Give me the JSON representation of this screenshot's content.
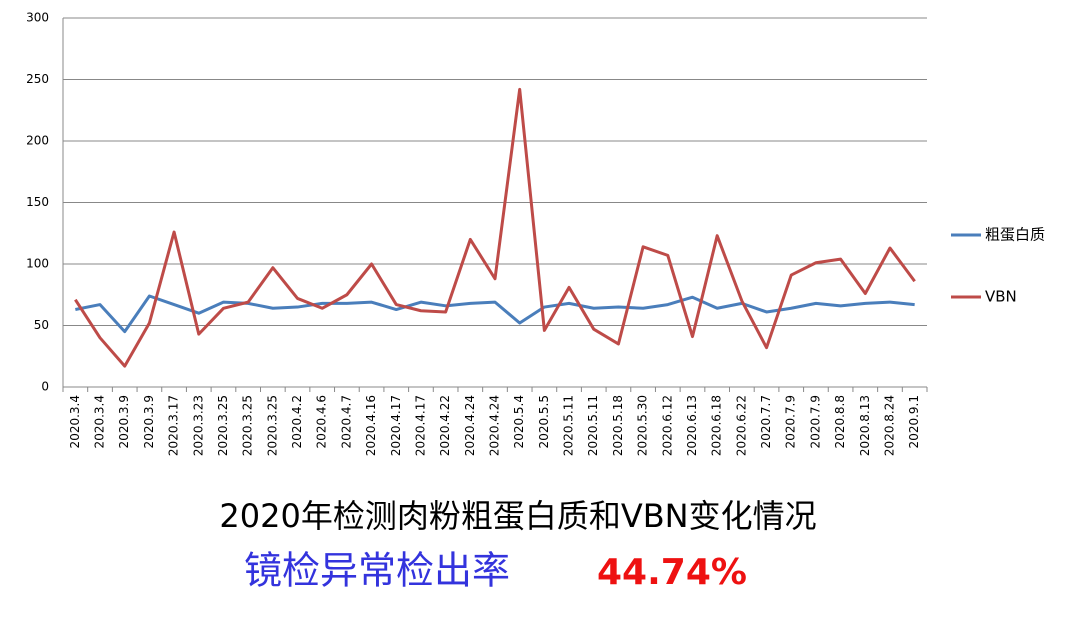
{
  "chart_data": {
    "type": "line",
    "title": "2020年检测肉粉粗蛋白质和VBN变化情况",
    "subtitle": "镜检异常检出率",
    "subtitle_rate": "44.74%",
    "categories": [
      "2020.3.4",
      "2020.3.4",
      "2020.3.9",
      "2020.3.9",
      "2020.3.17",
      "2020.3.23",
      "2020.3.25",
      "2020.3.25",
      "2020.3.25",
      "2020.4.2",
      "2020.4.6",
      "2020.4.7",
      "2020.4.16",
      "2020.4.17",
      "2020.4.17",
      "2020.4.22",
      "2020.4.24",
      "2020.4.24",
      "2020.5.4",
      "2020.5.5",
      "2020.5.11",
      "2020.5.11",
      "2020.5.18",
      "2020.5.30",
      "2020.6.12",
      "2020.6.13",
      "2020.6.18",
      "2020.6.22",
      "2020.7.7",
      "2020.7.9",
      "2020.7.9",
      "2020.8.8",
      "2020.8.13",
      "2020.8.24",
      "2020.9.1"
    ],
    "series": [
      {
        "name": "粗蛋白质",
        "color": "#4a7ebb",
        "values": [
          63,
          67,
          45,
          74,
          67,
          60,
          69,
          68,
          64,
          65,
          68,
          68,
          69,
          63,
          69,
          66,
          68,
          69,
          52,
          65,
          68,
          64,
          65,
          64,
          67,
          73,
          64,
          68,
          61,
          64,
          68,
          66,
          68,
          69,
          67
        ]
      },
      {
        "name": "VBN",
        "color": "#be4b48",
        "values": [
          71,
          40,
          17,
          52,
          126,
          43,
          64,
          69,
          97,
          72,
          64,
          75,
          100,
          67,
          62,
          61,
          120,
          88,
          242,
          46,
          81,
          47,
          35,
          114,
          107,
          41,
          123,
          70,
          32,
          91,
          101,
          104,
          76,
          113,
          86
        ]
      }
    ],
    "ylim": [
      0,
      300
    ],
    "yticks": [
      0,
      50,
      100,
      150,
      200,
      250,
      300
    ],
    "grid": true,
    "legend": "right"
  }
}
